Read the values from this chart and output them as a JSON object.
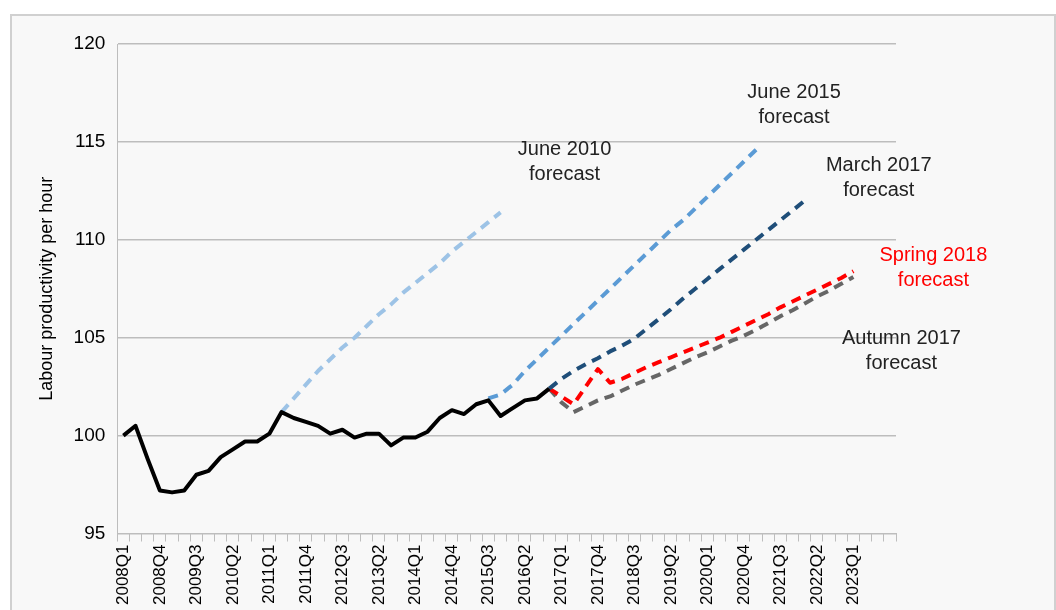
{
  "chart_data": {
    "type": "line",
    "ylabel": "Labour productivity per hour",
    "categories": [
      "2008Q1",
      null,
      null,
      "2008Q4",
      null,
      null,
      "2009Q3",
      null,
      null,
      "2010Q2",
      null,
      null,
      "2011Q1",
      null,
      null,
      "2011Q4",
      null,
      null,
      "2012Q3",
      null,
      null,
      "2013Q2",
      null,
      null,
      "2014Q1",
      null,
      null,
      "2014Q4",
      null,
      null,
      "2015Q3",
      null,
      null,
      "2016Q2",
      null,
      null,
      "2017Q1",
      null,
      null,
      "2017Q4",
      null,
      null,
      "2018Q3",
      null,
      null,
      "2019Q2",
      null,
      null,
      "2020Q1",
      null,
      null,
      "2020Q4",
      null,
      null,
      "2021Q3",
      null,
      null,
      "2022Q2",
      null,
      null,
      "2023Q1",
      null,
      null,
      null
    ],
    "series": [
      {
        "color": "#000000",
        "line_style": "solid",
        "values": [
          100.0,
          100.5,
          98.8,
          97.2,
          97.1,
          97.2,
          98.0,
          98.2,
          98.9,
          99.3,
          99.7,
          99.7,
          100.1,
          101.2,
          100.9,
          100.7,
          100.5,
          100.1,
          100.3,
          99.9,
          100.1,
          100.1,
          99.5,
          99.9,
          99.9,
          100.2,
          100.9,
          101.3,
          101.1,
          101.6,
          101.8,
          101.0,
          101.4,
          101.8,
          101.9,
          102.4,
          null,
          null,
          null,
          null,
          null,
          null,
          null,
          null,
          null,
          null,
          null,
          null,
          null,
          null,
          null,
          null,
          null,
          null,
          null,
          null,
          null,
          null,
          null,
          null,
          null,
          null,
          null,
          null
        ]
      },
      {
        "name": "June 2010 forecast",
        "color": "#9dc3e6",
        "line_style": "dashed",
        "values": [
          null,
          null,
          null,
          null,
          null,
          null,
          null,
          null,
          null,
          null,
          null,
          null,
          null,
          101.2,
          101.9,
          102.6,
          103.3,
          103.9,
          104.5,
          105.0,
          105.6,
          106.2,
          106.7,
          107.3,
          107.8,
          108.3,
          108.8,
          109.4,
          109.9,
          110.4,
          110.9,
          111.4,
          null,
          null,
          null,
          null,
          null,
          null,
          null,
          null,
          null,
          null,
          null,
          null,
          null,
          null,
          null,
          null,
          null,
          null,
          null,
          null,
          null,
          null,
          null,
          null,
          null,
          null,
          null,
          null,
          null,
          null,
          null,
          null
        ]
      },
      {
        "name": "June 2015 forecast",
        "color": "#5b9bd5",
        "line_style": "dashed",
        "values": [
          null,
          null,
          null,
          null,
          null,
          null,
          null,
          null,
          null,
          null,
          null,
          null,
          null,
          null,
          null,
          null,
          null,
          null,
          null,
          null,
          null,
          null,
          null,
          null,
          null,
          null,
          null,
          null,
          null,
          null,
          101.9,
          102.1,
          102.6,
          103.3,
          103.9,
          104.5,
          105.1,
          105.7,
          106.3,
          106.9,
          107.5,
          108.1,
          108.7,
          109.3,
          109.9,
          110.5,
          111.0,
          111.6,
          112.2,
          112.8,
          113.4,
          114.0,
          114.6,
          null,
          null,
          null,
          null,
          null,
          null,
          null,
          null,
          null,
          null,
          null
        ]
      },
      {
        "name": "March 2017 forecast",
        "color": "#1f4e79",
        "line_style": "dashed",
        "values": [
          null,
          null,
          null,
          null,
          null,
          null,
          null,
          null,
          null,
          null,
          null,
          null,
          null,
          null,
          null,
          null,
          null,
          null,
          null,
          null,
          null,
          null,
          null,
          null,
          null,
          null,
          null,
          null,
          null,
          null,
          null,
          null,
          null,
          null,
          null,
          102.4,
          102.9,
          103.3,
          103.65,
          103.95,
          104.3,
          104.6,
          104.95,
          105.45,
          105.95,
          106.45,
          107.0,
          107.5,
          108.0,
          108.5,
          109.0,
          109.5,
          110.0,
          110.5,
          111.0,
          111.5,
          112.0,
          null,
          null,
          null,
          null,
          null,
          null,
          null
        ]
      },
      {
        "name": "Spring 2018 forecast",
        "color": "#ff0000",
        "line_style": "dashed",
        "values": [
          null,
          null,
          null,
          null,
          null,
          null,
          null,
          null,
          null,
          null,
          null,
          null,
          null,
          null,
          null,
          null,
          null,
          null,
          null,
          null,
          null,
          null,
          null,
          null,
          null,
          null,
          null,
          null,
          null,
          null,
          null,
          null,
          null,
          null,
          null,
          102.4,
          102.0,
          101.6,
          102.5,
          103.4,
          102.7,
          102.9,
          103.2,
          103.5,
          103.75,
          104.0,
          104.25,
          104.5,
          104.75,
          105.0,
          105.3,
          105.6,
          105.9,
          106.2,
          106.55,
          106.85,
          107.15,
          107.45,
          107.75,
          108.05,
          108.4,
          null,
          null,
          null
        ]
      },
      {
        "name": "Autumn 2017 forecast",
        "color": "#666666",
        "line_style": "dashed",
        "values": [
          null,
          null,
          null,
          null,
          null,
          null,
          null,
          null,
          null,
          null,
          null,
          null,
          null,
          null,
          null,
          null,
          null,
          null,
          null,
          null,
          null,
          null,
          null,
          null,
          null,
          null,
          null,
          null,
          null,
          null,
          null,
          null,
          null,
          null,
          null,
          102.4,
          101.7,
          101.2,
          101.5,
          101.8,
          102.0,
          102.3,
          102.6,
          102.85,
          103.1,
          103.4,
          103.7,
          104.0,
          104.25,
          104.55,
          104.85,
          105.1,
          105.4,
          105.75,
          106.1,
          106.4,
          106.75,
          107.1,
          107.4,
          107.75,
          108.1,
          null,
          null,
          null
        ]
      }
    ],
    "ylim": [
      95,
      120
    ],
    "yticks": [
      95,
      100,
      105,
      110,
      115,
      120
    ],
    "grid": "y",
    "legend": false,
    "marker": "none"
  }
}
